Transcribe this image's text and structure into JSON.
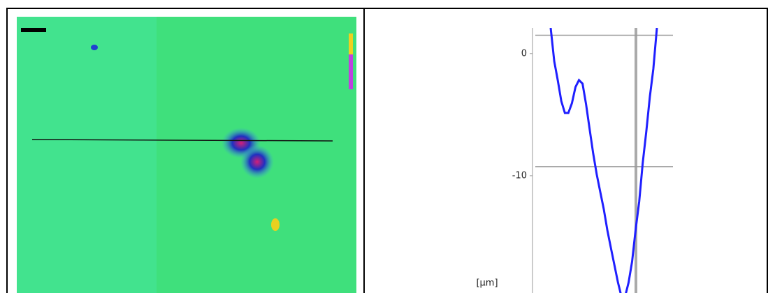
{
  "chart_data": {
    "type": "line",
    "y_label": "[µm]",
    "ylim": [
      -19.6,
      2.1
    ],
    "yticks": [
      0,
      -10
    ],
    "series": [
      {
        "color": "#1f1fff",
        "values": [
          2.1,
          -0.63,
          -2.17,
          -3.89,
          -4.86,
          -4.86,
          -4.06,
          -2.74,
          -2.17,
          -2.46,
          -4.17,
          -6.17,
          -8.17,
          -9.89,
          -11.31,
          -12.74,
          -14.46,
          -15.89,
          -17.31,
          -18.74,
          -19.9,
          -19.9,
          -18.74,
          -17.03,
          -14.4,
          -12.11,
          -8.97,
          -6.4,
          -3.54,
          -1.26,
          2.1
        ]
      }
    ],
    "cursors": [
      1.5,
      -9.26
    ]
  }
}
